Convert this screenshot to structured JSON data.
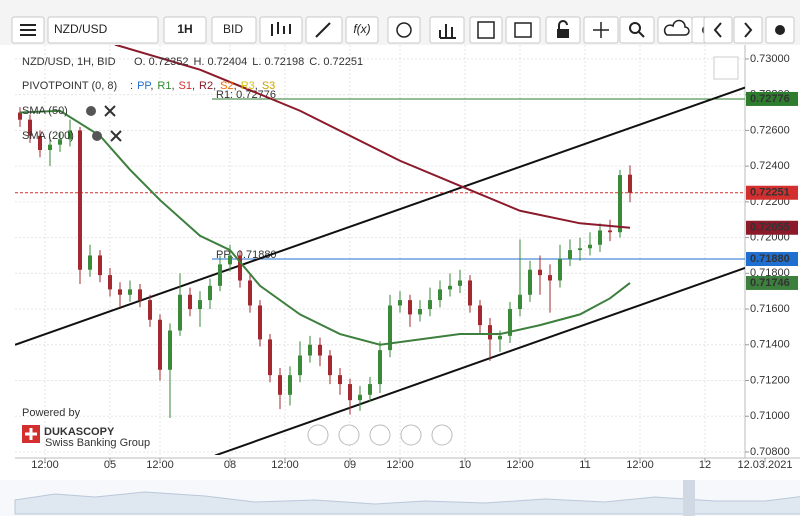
{
  "toolbar": {
    "symbol": "NZD/USD",
    "interval": "1H",
    "price_type": "BID",
    "function_label": "f(x)"
  },
  "chart_data": {
    "type": "candlestick",
    "header": {
      "instrument": "NZD/USD, 1H, BID",
      "ohlc": [
        "O. 0.72352",
        "H. 0.72404",
        "L. 0.72198",
        "C. 0.72251"
      ]
    },
    "pivot": {
      "label": "PIVOTPOINT (0, 8)",
      "prefix": ":",
      "separator": ",",
      "items": [
        {
          "name": "PP",
          "color": "#1f6fd0"
        },
        {
          "name": "R1",
          "color": "#2e8b2e"
        },
        {
          "name": "S1",
          "color": "#d32f2f"
        },
        {
          "name": "R2",
          "color": "#8b1a2b"
        },
        {
          "name": "S2",
          "color": "#ef6c00"
        },
        {
          "name": "R3",
          "color": "#d8c400"
        },
        {
          "name": "S3",
          "color": "#c9a400"
        }
      ]
    },
    "up_color": "#3a8a3a",
    "down_color": "#a3282f",
    "x": [
      1,
      3,
      5,
      7,
      9,
      11,
      13,
      15,
      17,
      19,
      21,
      23,
      25,
      27,
      29,
      31,
      33,
      35,
      37,
      39,
      41,
      43,
      45,
      47,
      49,
      51,
      53,
      55,
      57,
      59,
      61,
      63,
      65,
      67,
      69,
      71,
      73,
      75,
      77,
      79,
      81,
      83,
      85,
      87,
      89,
      91,
      93,
      95,
      97,
      99,
      101,
      103,
      105,
      107,
      109,
      111,
      113,
      115,
      117,
      119,
      121,
      123
    ],
    "open": [
      0.727,
      0.7266,
      0.7257,
      0.7249,
      0.7252,
      0.7255,
      0.726,
      0.7182,
      0.719,
      0.7179,
      0.7171,
      0.7168,
      0.7171,
      0.7165,
      0.7154,
      0.7126,
      0.7148,
      0.7168,
      0.716,
      0.7165,
      0.7173,
      0.7185,
      0.719,
      0.7176,
      0.7162,
      0.7143,
      0.7123,
      0.7112,
      0.7123,
      0.7134,
      0.714,
      0.7134,
      0.7123,
      0.7118,
      0.7109,
      0.7112,
      0.7118,
      0.7137,
      0.7162,
      0.7165,
      0.7157,
      0.716,
      0.7165,
      0.7171,
      0.7173,
      0.7176,
      0.7162,
      0.7151,
      0.7143,
      0.7145,
      0.716,
      0.7168,
      0.7182,
      0.7179,
      0.7176,
      0.7188,
      0.7193,
      0.7194,
      0.7196,
      0.7204,
      0.7203,
      0.72352
    ],
    "high": [
      0.7273,
      0.7269,
      0.726,
      0.7256,
      0.7259,
      0.7266,
      0.7262,
      0.7196,
      0.7193,
      0.7183,
      0.7175,
      0.7176,
      0.7174,
      0.7168,
      0.7157,
      0.7152,
      0.718,
      0.7172,
      0.717,
      0.7177,
      0.719,
      0.7196,
      0.7193,
      0.718,
      0.7165,
      0.7146,
      0.7127,
      0.7128,
      0.7142,
      0.7145,
      0.7144,
      0.7137,
      0.7127,
      0.7121,
      0.7117,
      0.7122,
      0.7142,
      0.7168,
      0.717,
      0.7168,
      0.7165,
      0.7172,
      0.7176,
      0.718,
      0.7182,
      0.7179,
      0.7165,
      0.7155,
      0.7148,
      0.7164,
      0.7199,
      0.7187,
      0.719,
      0.7185,
      0.7196,
      0.7199,
      0.72,
      0.7203,
      0.7208,
      0.721,
      0.7238,
      0.72404
    ],
    "low": [
      0.7262,
      0.7253,
      0.7245,
      0.724,
      0.7248,
      0.7251,
      0.7174,
      0.7178,
      0.7175,
      0.7167,
      0.7161,
      0.7164,
      0.7161,
      0.715,
      0.712,
      0.7099,
      0.7145,
      0.7156,
      0.715,
      0.716,
      0.717,
      0.7181,
      0.7172,
      0.7158,
      0.7139,
      0.7119,
      0.7104,
      0.7106,
      0.7119,
      0.713,
      0.7128,
      0.7118,
      0.7112,
      0.7101,
      0.7103,
      0.7108,
      0.7113,
      0.7133,
      0.7158,
      0.715,
      0.7153,
      0.7156,
      0.7161,
      0.7167,
      0.7169,
      0.7158,
      0.7146,
      0.7131,
      0.7136,
      0.7141,
      0.7156,
      0.7164,
      0.7168,
      0.7158,
      0.7172,
      0.7184,
      0.7187,
      0.719,
      0.7192,
      0.7198,
      0.72,
      0.72198
    ],
    "close": [
      0.7266,
      0.7257,
      0.7249,
      0.7252,
      0.7255,
      0.726,
      0.7182,
      0.719,
      0.7179,
      0.7171,
      0.7168,
      0.7171,
      0.7165,
      0.7154,
      0.7126,
      0.7148,
      0.7168,
      0.716,
      0.7165,
      0.7173,
      0.7185,
      0.719,
      0.7176,
      0.7162,
      0.7143,
      0.7123,
      0.7112,
      0.7123,
      0.7134,
      0.714,
      0.7134,
      0.7123,
      0.7118,
      0.7109,
      0.7112,
      0.7118,
      0.7137,
      0.7162,
      0.7165,
      0.7157,
      0.716,
      0.7165,
      0.7171,
      0.7173,
      0.7176,
      0.7162,
      0.7151,
      0.7143,
      0.7145,
      0.716,
      0.7168,
      0.7182,
      0.7179,
      0.7176,
      0.7188,
      0.7193,
      0.7194,
      0.7196,
      0.7204,
      0.7203,
      0.7235,
      0.72251
    ],
    "series": [
      {
        "name": "SMA (50)",
        "color": "#3d7f3d",
        "x": [
          1,
          9,
          17,
          23,
          29,
          37,
          43,
          49,
          57,
          65,
          73,
          81,
          89,
          97,
          105,
          113,
          119,
          123
        ],
        "values": [
          0.727,
          0.7271,
          0.7257,
          0.7238,
          0.7221,
          0.7201,
          0.7193,
          0.7173,
          0.7157,
          0.7146,
          0.714,
          0.7143,
          0.7146,
          0.7146,
          0.7151,
          0.7157,
          0.7166,
          0.71746
        ]
      },
      {
        "name": "SMA (200)",
        "color": "#8b1a2b",
        "x": [
          20,
          37,
          57,
          77,
          89,
          101,
          113,
          123
        ],
        "values": [
          0.7308,
          0.7294,
          0.7271,
          0.7243,
          0.7229,
          0.7215,
          0.7208,
          0.72055
        ]
      }
    ],
    "trendlines": [
      {
        "color": "#111111",
        "x": [
          0,
          146
        ],
        "values": [
          0.714,
          0.7284
        ]
      },
      {
        "color": "#111111",
        "x": [
          40,
          146
        ],
        "values": [
          0.7078,
          0.7183
        ]
      }
    ],
    "levels": [
      {
        "value": 0.72776,
        "label": "R1: 0.72776",
        "color": "#2e7d2e"
      },
      {
        "value": 0.7188,
        "label": "PP: 0.71880",
        "color": "#1f6fd0"
      }
    ],
    "last_price": {
      "value": 0.72251,
      "label": "0.72251",
      "color": "#d32f2f"
    },
    "price_tags": [
      {
        "value": 0.72776,
        "label": "0.72776",
        "color": "#2e7d2e"
      },
      {
        "value": 0.72055,
        "label": "0.72055",
        "color": "#8b1a2b"
      },
      {
        "value": 0.7188,
        "label": "0.71880",
        "color": "#1f6fd0"
      },
      {
        "value": 0.71746,
        "label": "0.71746",
        "color": "#3d7f3d"
      }
    ],
    "xlim": [
      0,
      146
    ],
    "xticks": [
      {
        "value": 6,
        "label": "12:00"
      },
      {
        "value": 19,
        "label": "05"
      },
      {
        "value": 29,
        "label": "12:00"
      },
      {
        "value": 43,
        "label": "08"
      },
      {
        "value": 54,
        "label": "12:00"
      },
      {
        "value": 67,
        "label": "09"
      },
      {
        "value": 77,
        "label": "12:00"
      },
      {
        "value": 90,
        "label": "10"
      },
      {
        "value": 101,
        "label": "12:00"
      },
      {
        "value": 114,
        "label": "11"
      },
      {
        "value": 125,
        "label": "12:00"
      },
      {
        "value": 138,
        "label": "12"
      },
      {
        "value": 150,
        "label": "12.03.2021"
      }
    ],
    "ylim": [
      0.70783,
      0.73078
    ],
    "yticks": [
      {
        "value": 0.73,
        "label": "0.73000"
      },
      {
        "value": 0.728,
        "label": "0.72800"
      },
      {
        "value": 0.726,
        "label": "0.72600"
      },
      {
        "value": 0.724,
        "label": "0.72400"
      },
      {
        "value": 0.722,
        "label": "0.72200"
      },
      {
        "value": 0.72,
        "label": "0.72000"
      },
      {
        "value": 0.718,
        "label": "0.71800"
      },
      {
        "value": 0.716,
        "label": "0.71600"
      },
      {
        "value": 0.714,
        "label": "0.71400"
      },
      {
        "value": 0.712,
        "label": "0.71200"
      },
      {
        "value": 0.71,
        "label": "0.71000"
      },
      {
        "value": 0.708,
        "label": "0.70800"
      }
    ],
    "grid": true
  },
  "branding": {
    "powered": "Powered by",
    "name": "DUKASCOPY",
    "tagline": "Swiss Banking Group"
  }
}
